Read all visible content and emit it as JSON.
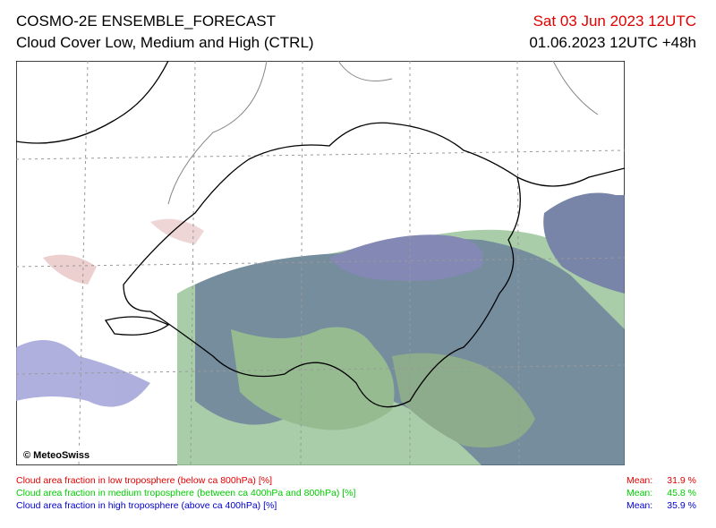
{
  "header": {
    "title": "COSMO-2E ENSEMBLE_FORECAST",
    "subtitle": "Cloud Cover Low, Medium and High (CTRL)",
    "valid_time": "Sat 03 Jun 2023 12UTC",
    "run": "01.06.2023 12UTC +48h"
  },
  "map": {
    "copyright": "© MeteoSwiss"
  },
  "legend": [
    {
      "label": "Cloud area fraction in low troposphere (below ca 800hPa) [%]",
      "mean_label": "Mean:",
      "mean": "31.9 %"
    },
    {
      "label": "Cloud area fraction in medium troposphere (between ca 400hPa and 800hPa) [%]",
      "mean_label": "Mean:",
      "mean": "45.8 %"
    },
    {
      "label": "Cloud area fraction in high troposphere (above ca 400hPa) [%]",
      "mean_label": "Mean:",
      "mean": "35.9 %"
    }
  ]
}
